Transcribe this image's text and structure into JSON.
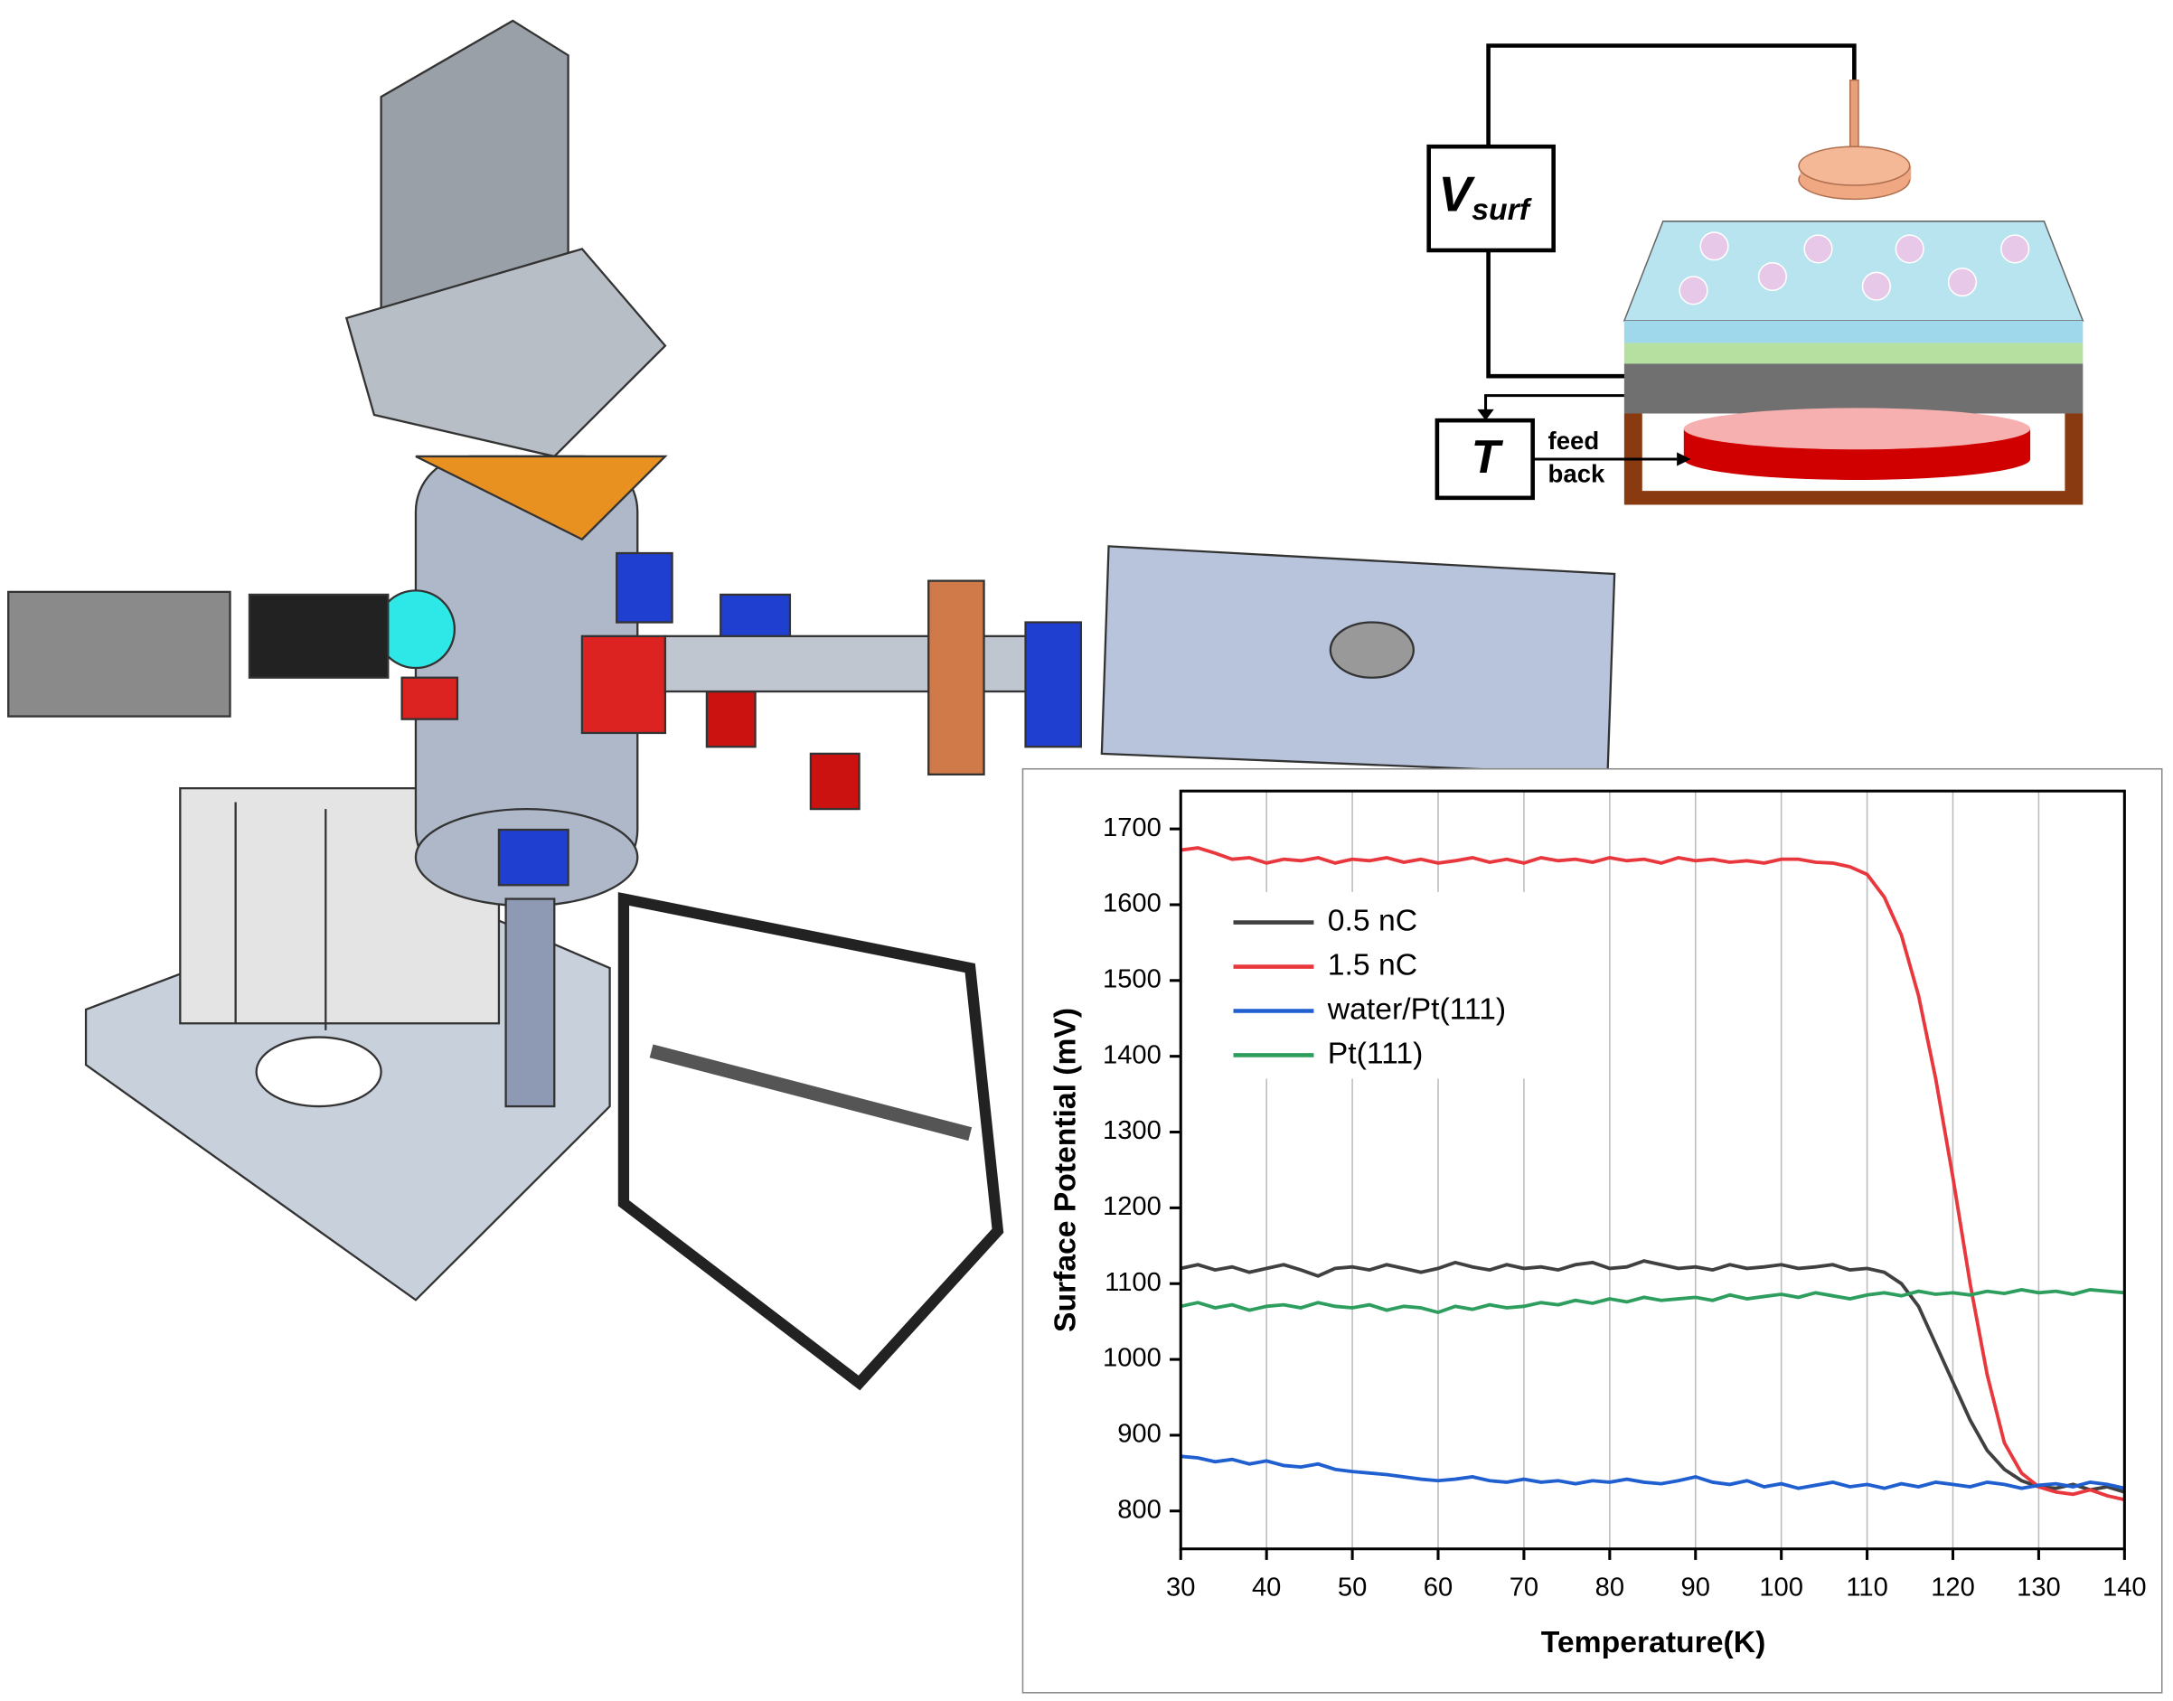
{
  "chart_data": {
    "type": "line",
    "xlabel": "Temperature(K)",
    "ylabel": "Surface Potential (mV)",
    "x": [
      30,
      32,
      34,
      36,
      38,
      40,
      42,
      44,
      46,
      48,
      50,
      52,
      54,
      56,
      58,
      60,
      62,
      64,
      66,
      68,
      70,
      72,
      74,
      76,
      78,
      80,
      82,
      84,
      86,
      88,
      90,
      92,
      94,
      96,
      98,
      100,
      102,
      104,
      106,
      108,
      110,
      112,
      114,
      116,
      118,
      120,
      122,
      124,
      126,
      128,
      130,
      132,
      134,
      136,
      138,
      140
    ],
    "series": [
      {
        "name": "0.5 nC",
        "color": "#404040",
        "values": [
          1120,
          1125,
          1118,
          1122,
          1115,
          1120,
          1125,
          1118,
          1110,
          1120,
          1122,
          1118,
          1125,
          1120,
          1115,
          1120,
          1128,
          1122,
          1118,
          1125,
          1120,
          1122,
          1118,
          1125,
          1128,
          1120,
          1122,
          1130,
          1125,
          1120,
          1122,
          1118,
          1125,
          1120,
          1122,
          1125,
          1120,
          1122,
          1125,
          1118,
          1120,
          1115,
          1100,
          1070,
          1020,
          970,
          920,
          880,
          855,
          840,
          832,
          830,
          835,
          828,
          832,
          825
        ]
      },
      {
        "name": "1.5 nC",
        "color": "#e8383d",
        "values": [
          1672,
          1675,
          1668,
          1660,
          1662,
          1655,
          1660,
          1658,
          1662,
          1655,
          1660,
          1658,
          1662,
          1656,
          1660,
          1655,
          1658,
          1662,
          1656,
          1660,
          1655,
          1662,
          1658,
          1660,
          1656,
          1662,
          1658,
          1660,
          1655,
          1662,
          1658,
          1660,
          1656,
          1658,
          1655,
          1660,
          1660,
          1656,
          1655,
          1650,
          1640,
          1610,
          1560,
          1480,
          1370,
          1240,
          1100,
          980,
          890,
          850,
          832,
          825,
          822,
          828,
          820,
          815
        ]
      },
      {
        "name": "water/Pt(111)",
        "color": "#1f5fd0",
        "values": [
          872,
          870,
          865,
          868,
          862,
          866,
          860,
          858,
          862,
          855,
          852,
          850,
          848,
          845,
          842,
          840,
          842,
          845,
          840,
          838,
          842,
          838,
          840,
          836,
          840,
          838,
          842,
          838,
          836,
          840,
          845,
          838,
          835,
          840,
          832,
          836,
          830,
          834,
          838,
          832,
          835,
          830,
          836,
          832,
          838,
          835,
          832,
          838,
          835,
          830,
          834,
          836,
          832,
          838,
          835,
          830
        ]
      },
      {
        "name": "Pt(111)",
        "color": "#2e9e5e",
        "values": [
          1070,
          1075,
          1068,
          1072,
          1065,
          1070,
          1072,
          1068,
          1075,
          1070,
          1068,
          1072,
          1065,
          1070,
          1068,
          1062,
          1070,
          1066,
          1072,
          1068,
          1070,
          1075,
          1072,
          1078,
          1074,
          1080,
          1076,
          1082,
          1078,
          1080,
          1082,
          1078,
          1085,
          1080,
          1083,
          1086,
          1082,
          1088,
          1084,
          1080,
          1085,
          1088,
          1084,
          1090,
          1086,
          1088,
          1085,
          1090,
          1087,
          1092,
          1088,
          1090,
          1086,
          1092,
          1090,
          1088
        ]
      }
    ],
    "xlim": [
      30,
      140
    ],
    "xticks": [
      30,
      40,
      50,
      60,
      70,
      80,
      90,
      100,
      110,
      120,
      130,
      140
    ],
    "ylim": [
      750,
      1750
    ],
    "yticks": [
      800,
      900,
      1000,
      1100,
      1200,
      1300,
      1400,
      1500,
      1600,
      1700
    ],
    "grid": true,
    "legend": "upper left"
  },
  "diagram": {
    "voltmeter": {
      "symbol": "V",
      "subscript": "surf"
    },
    "controller": "T",
    "feedback": [
      "feed",
      "back"
    ]
  }
}
